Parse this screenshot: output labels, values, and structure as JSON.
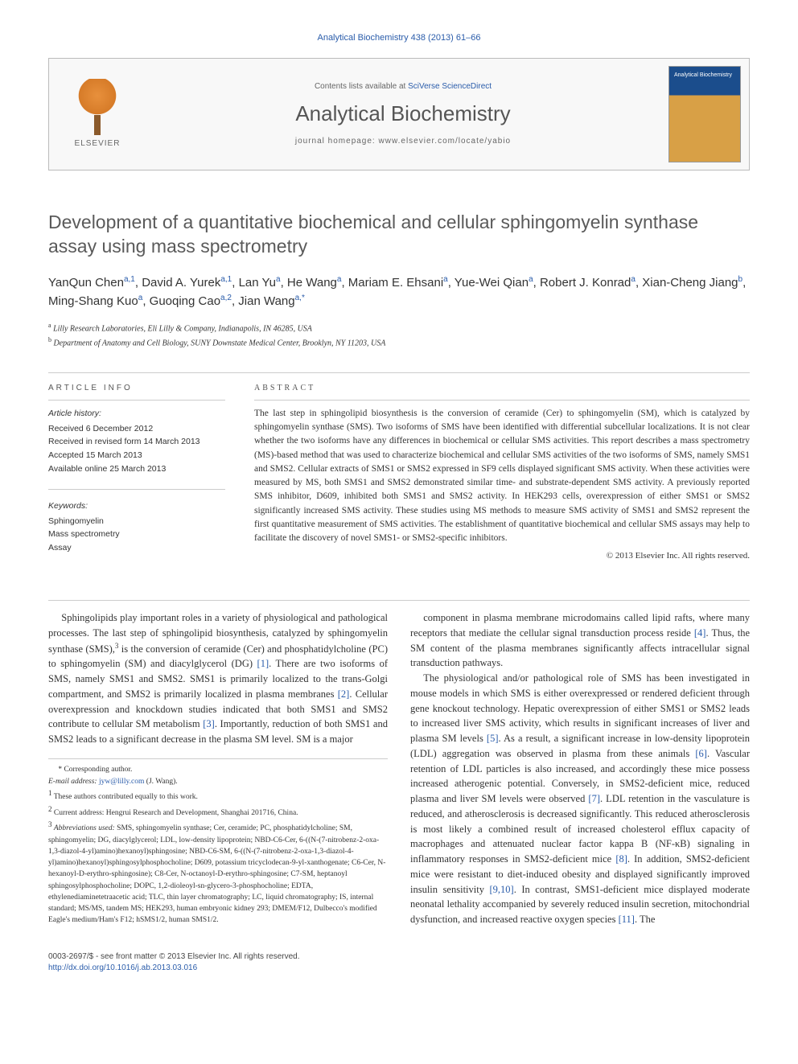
{
  "citation": "Analytical Biochemistry 438 (2013) 61–66",
  "header": {
    "contents_prefix": "Contents lists available at ",
    "contents_link": "SciVerse ScienceDirect",
    "journal_name": "Analytical Biochemistry",
    "homepage_prefix": "journal homepage: ",
    "homepage_url": "www.elsevier.com/locate/yabio",
    "publisher": "ELSEVIER"
  },
  "title": "Development of a quantitative biochemical and cellular sphingomyelin synthase assay using mass spectrometry",
  "authors_html": "YanQun Chen<sup>a,1</sup>, David A. Yurek<sup>a,1</sup>, Lan Yu<sup>a</sup>, He Wang<sup>a</sup>, Mariam E. Ehsani<sup>a</sup>, Yue-Wei Qian<sup>a</sup>, Robert J. Konrad<sup>a</sup>, Xian-Cheng Jiang<sup>b</sup>, Ming-Shang Kuo<sup>a</sup>, Guoqing Cao<sup>a,2</sup>, Jian Wang<sup>a,*</sup>",
  "affiliations": [
    {
      "sup": "a",
      "text": "Lilly Research Laboratories, Eli Lilly & Company, Indianapolis, IN 46285, USA"
    },
    {
      "sup": "b",
      "text": "Department of Anatomy and Cell Biology, SUNY Downstate Medical Center, Brooklyn, NY 11203, USA"
    }
  ],
  "article_info": {
    "heading": "ARTICLE INFO",
    "history_label": "Article history:",
    "history": [
      "Received 6 December 2012",
      "Received in revised form 14 March 2013",
      "Accepted 15 March 2013",
      "Available online 25 March 2013"
    ],
    "keywords_label": "Keywords:",
    "keywords": [
      "Sphingomyelin",
      "Mass spectrometry",
      "Assay"
    ]
  },
  "abstract": {
    "heading": "ABSTRACT",
    "text": "The last step in sphingolipid biosynthesis is the conversion of ceramide (Cer) to sphingomyelin (SM), which is catalyzed by sphingomyelin synthase (SMS). Two isoforms of SMS have been identified with differential subcellular localizations. It is not clear whether the two isoforms have any differences in biochemical or cellular SMS activities. This report describes a mass spectrometry (MS)-based method that was used to characterize biochemical and cellular SMS activities of the two isoforms of SMS, namely SMS1 and SMS2. Cellular extracts of SMS1 or SMS2 expressed in SF9 cells displayed significant SMS activity. When these activities were measured by MS, both SMS1 and SMS2 demonstrated similar time- and substrate-dependent SMS activity. A previously reported SMS inhibitor, D609, inhibited both SMS1 and SMS2 activity. In HEK293 cells, overexpression of either SMS1 or SMS2 significantly increased SMS activity. These studies using MS methods to measure SMS activity of SMS1 and SMS2 represent the first quantitative measurement of SMS activities. The establishment of quantitative biochemical and cellular SMS assays may help to facilitate the discovery of novel SMS1- or SMS2-specific inhibitors.",
    "copyright": "© 2013 Elsevier Inc. All rights reserved."
  },
  "body": {
    "left_paragraphs": [
      "Sphingolipids play important roles in a variety of physiological and pathological processes. The last step of sphingolipid biosynthesis, catalyzed by sphingomyelin synthase (SMS),<sup>3</sup> is the conversion of ceramide (Cer) and phosphatidylcholine (PC) to sphingomyelin (SM) and diacylglycerol (DG) <span class=\"cite\">[1]</span>. There are two isoforms of SMS, namely SMS1 and SMS2. SMS1 is primarily localized to the trans-Golgi compartment, and SMS2 is primarily localized in plasma membranes <span class=\"cite\">[2]</span>. Cellular overexpression and knockdown studies indicated that both SMS1 and SMS2 contribute to cellular SM metabolism <span class=\"cite\">[3]</span>. Importantly, reduction of both SMS1 and SMS2 leads to a significant decrease in the plasma SM level. SM is a major"
    ],
    "right_paragraphs": [
      "component in plasma membrane microdomains called lipid rafts, where many receptors that mediate the cellular signal transduction process reside <span class=\"cite\">[4]</span>. Thus, the SM content of the plasma membranes significantly affects intracellular signal transduction pathways.",
      "The physiological and/or pathological role of SMS has been investigated in mouse models in which SMS is either overexpressed or rendered deficient through gene knockout technology. Hepatic overexpression of either SMS1 or SMS2 leads to increased liver SMS activity, which results in significant increases of liver and plasma SM levels <span class=\"cite\">[5]</span>. As a result, a significant increase in low-density lipoprotein (LDL) aggregation was observed in plasma from these animals <span class=\"cite\">[6]</span>. Vascular retention of LDL particles is also increased, and accordingly these mice possess increased atherogenic potential. Conversely, in SMS2-deficient mice, reduced plasma and liver SM levels were observed <span class=\"cite\">[7]</span>. LDL retention in the vasculature is reduced, and atherosclerosis is decreased significantly. This reduced atherosclerosis is most likely a combined result of increased cholesterol efflux capacity of macrophages and attenuated nuclear factor kappa B (NF-κB) signaling in inflammatory responses in SMS2-deficient mice <span class=\"cite\">[8]</span>. In addition, SMS2-deficient mice were resistant to diet-induced obesity and displayed significantly improved insulin sensitivity <span class=\"cite\">[9,10]</span>. In contrast, SMS1-deficient mice displayed moderate neonatal lethality accompanied by severely reduced insulin secretion, mitochondrial dysfunction, and increased reactive oxygen species <span class=\"cite\">[11]</span>. The"
    ]
  },
  "footnotes": {
    "corr": "* Corresponding author.",
    "email_label": "E-mail address:",
    "email": "jyw@lilly.com",
    "email_name": "(J. Wang).",
    "fn1": "These authors contributed equally to this work.",
    "fn2": "Current address: Hengrui Research and Development, Shanghai 201716, China.",
    "fn3_label": "Abbreviations used:",
    "fn3": "SMS, sphingomyelin synthase; Cer, ceramide; PC, phosphatidylcholine; SM, sphingomyelin; DG, diacylglycerol; LDL, low-density lipoprotein; NBD-C6-Cer, 6-((N-(7-nitrobenz-2-oxa-1,3-diazol-4-yl)amino)hexanoyl)sphingosine; NBD-C6-SM, 6-((N-(7-nitrobenz-2-oxa-1,3-diazol-4-yl)amino)hexanoyl)sphingosylphosphocholine; D609, potassium tricyclodecan-9-yl-xanthogenate; C6-Cer, N-hexanoyl-D-erythro-sphingosine); C8-Cer, N-octanoyl-D-erythro-sphingosine; C7-SM, heptanoyl sphingosylphosphocholine; DOPC, 1,2-dioleoyl-sn-glycero-3-phosphocholine; EDTA, ethylenediaminetetraacetic acid; TLC, thin layer chromatography; LC, liquid chromatography; IS, internal standard; MS/MS, tandem MS; HEK293, human embryonic kidney 293; DMEM/F12, Dulbecco's modified Eagle's medium/Ham's F12; hSMS1/2, human SMS1/2."
  },
  "footer": {
    "issn": "0003-2697/$ - see front matter © 2013 Elsevier Inc. All rights reserved.",
    "doi": "http://dx.doi.org/10.1016/j.ab.2013.03.016"
  },
  "colors": {
    "link": "#2a5caa",
    "heading": "#5a5a5a",
    "border": "#cccccc",
    "text": "#333333"
  }
}
